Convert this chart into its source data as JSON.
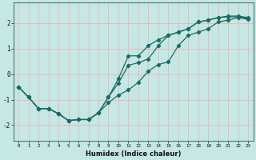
{
  "xlabel": "Humidex (Indice chaleur)",
  "bg_color": "#c5e8e5",
  "grid_color": "#e8b8b8",
  "line_color": "#1a6b63",
  "xlim": [
    -0.5,
    23.5
  ],
  "ylim": [
    -2.6,
    2.8
  ],
  "x_ticks": [
    0,
    1,
    2,
    3,
    4,
    5,
    6,
    7,
    8,
    9,
    10,
    11,
    12,
    13,
    14,
    15,
    16,
    17,
    18,
    19,
    20,
    21,
    22,
    23
  ],
  "y_ticks": [
    -2,
    -1,
    0,
    1,
    2
  ],
  "line1_x": [
    0,
    1,
    2,
    3,
    4,
    5,
    6,
    7,
    8,
    9,
    10,
    11,
    12,
    13,
    14,
    15,
    16,
    17,
    18,
    19,
    20,
    21,
    22,
    23
  ],
  "line1_y": [
    -0.5,
    -0.9,
    -1.35,
    -1.35,
    -1.55,
    -1.82,
    -1.78,
    -1.78,
    -1.52,
    -1.12,
    -0.82,
    -0.62,
    -0.32,
    0.12,
    0.38,
    0.48,
    1.12,
    1.52,
    1.65,
    1.78,
    2.05,
    2.12,
    2.22,
    2.15
  ],
  "line2_x": [
    0,
    1,
    2,
    3,
    4,
    5,
    6,
    7,
    8,
    9,
    10,
    11,
    12,
    13,
    14,
    15,
    16,
    17,
    18,
    19,
    20,
    21,
    22,
    23
  ],
  "line2_y": [
    -0.5,
    -0.9,
    -1.35,
    -1.35,
    -1.55,
    -1.82,
    -1.78,
    -1.78,
    -1.52,
    -0.9,
    -0.35,
    0.35,
    0.45,
    0.6,
    1.12,
    1.52,
    1.65,
    1.78,
    2.05,
    2.12,
    2.22,
    2.25,
    2.25,
    2.18
  ],
  "line3_x": [
    0,
    1,
    2,
    3,
    4,
    5,
    6,
    7,
    8,
    9,
    10,
    11,
    12,
    13,
    14,
    15,
    16,
    17,
    18,
    19,
    20,
    21,
    22,
    23
  ],
  "line3_y": [
    -0.5,
    -0.9,
    -1.35,
    -1.35,
    -1.55,
    -1.82,
    -1.78,
    -1.78,
    -1.52,
    -0.9,
    -0.18,
    0.72,
    0.72,
    1.12,
    1.35,
    1.52,
    1.65,
    1.78,
    2.05,
    2.12,
    2.22,
    2.28,
    2.28,
    2.22
  ]
}
